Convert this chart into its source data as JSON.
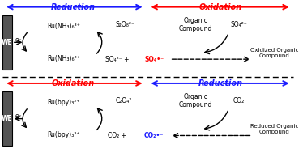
{
  "fig_width": 3.74,
  "fig_height": 1.89,
  "dpi": 100,
  "bg_color": "#ffffff",
  "blue": "#1a1aff",
  "red": "#ff0000",
  "black": "#000000",
  "panel_top": {
    "reduction_label": "Reduction",
    "oxidation_label": "Oxidation",
    "we_label": "WE",
    "e_label": "e⁻",
    "ru3_label": "Ru(NH₃)₆³⁺",
    "ru2_label": "Ru(NH₃)₆²⁺",
    "s2o8_label": "S₂O₈²⁻",
    "so4_label": "SO₄²⁻ +",
    "so4_rad_label": "SO₄•⁻",
    "organic_label": "Organic\nCompound",
    "so4_product_label": "SO₄²⁻",
    "oxidized_label": "Oxidized Organic\nCompound"
  },
  "panel_bottom": {
    "oxidation_label": "Oxidation",
    "reduction_label": "Reduction",
    "we_label": "WE",
    "e_label": "e⁻",
    "rubpy2_label": "Ru(bpy)₃²⁺",
    "rubpy3_label": "Ru(bpy)₃³⁺",
    "c2o4_label": "C₂O₄²⁻",
    "co2_label": "CO₂ +",
    "co2_rad_label": "CO₂•⁻",
    "organic_label": "Organic\nCompound",
    "co2_product_label": "CO₂",
    "reduced_label": "Reduced Organic\nCompound"
  }
}
